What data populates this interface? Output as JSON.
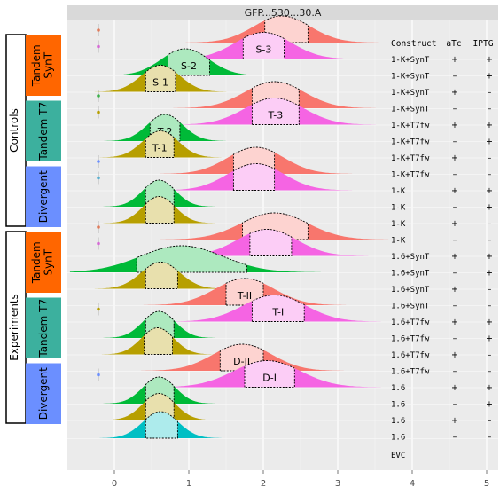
{
  "chart_data": {
    "type": "ridgeline",
    "title": "GFP...530...30.A",
    "x_ticks": [
      "0",
      "1",
      "2",
      "3",
      "4",
      "5"
    ],
    "xlim": [
      -0.6,
      5.3
    ],
    "grid": true,
    "table_headers": [
      "Construct",
      "aTc",
      "IPTG"
    ],
    "outer_groups": [
      {
        "label": "Controls",
        "row_start": 0,
        "row_end": 11
      },
      {
        "label": "Experiments",
        "row_start": 12,
        "row_end": 23
      }
    ],
    "subgroups": [
      {
        "label": "Tandem SynT",
        "color": "#ff6600",
        "row_start": 0,
        "row_end": 3
      },
      {
        "label": "Tandem T7",
        "color": "#3cb09e",
        "row_start": 4,
        "row_end": 7
      },
      {
        "label": "Divergent",
        "color": "#6b8fff",
        "row_start": 8,
        "row_end": 11
      },
      {
        "label": "Tandem SynT",
        "color": "#ff6600",
        "row_start": 12,
        "row_end": 15
      },
      {
        "label": "Tandem T7",
        "color": "#3cb09e",
        "row_start": 16,
        "row_end": 19
      },
      {
        "label": "Divergent",
        "color": "#6b8fff",
        "row_start": 20,
        "row_end": 23
      }
    ],
    "colors": {
      "both": "#f8766d",
      "iptg": "#f564e3",
      "atc": "#00ba38",
      "none": "#b79f00",
      "evc": "#00bfc4",
      "subgroup_border": "#000000"
    },
    "series": [
      {
        "construct": "1-K+SynT",
        "aTc": "+",
        "IPTG": "+",
        "cond": "both",
        "mean": 2.25,
        "sd": 0.38,
        "q1": 2.02,
        "q3": 2.6,
        "label": "",
        "dot": "both"
      },
      {
        "construct": "1-K+SynT",
        "aTc": "–",
        "IPTG": "+",
        "cond": "iptg",
        "mean": 2.0,
        "sd": 0.38,
        "q1": 1.73,
        "q3": 2.28,
        "label": "S-3",
        "dot": "iptg"
      },
      {
        "construct": "1-K+SynT",
        "aTc": "+",
        "IPTG": "–",
        "cond": "atc",
        "mean": 0.95,
        "sd": 0.32,
        "q1": 0.72,
        "q3": 1.28,
        "label": "S-2",
        "dot": ""
      },
      {
        "construct": "1-K+SynT",
        "aTc": "–",
        "IPTG": "–",
        "cond": "none",
        "mean": 0.62,
        "sd": 0.26,
        "q1": 0.42,
        "q3": 0.82,
        "label": "S-1",
        "dot": ""
      },
      {
        "construct": "1-K+T7fw",
        "aTc": "+",
        "IPTG": "+",
        "cond": "both",
        "mean": 2.15,
        "sd": 0.4,
        "q1": 1.85,
        "q3": 2.48,
        "label": "",
        "dot": "atc"
      },
      {
        "construct": "1-K+T7fw",
        "aTc": "–",
        "IPTG": "+",
        "cond": "iptg",
        "mean": 2.15,
        "sd": 0.4,
        "q1": 1.85,
        "q3": 2.48,
        "label": "T-3",
        "dot": "none"
      },
      {
        "construct": "1-K+T7fw",
        "aTc": "+",
        "IPTG": "–",
        "cond": "atc",
        "mean": 0.68,
        "sd": 0.24,
        "q1": 0.48,
        "q3": 0.88,
        "label": "T-2",
        "dot": ""
      },
      {
        "construct": "1-K+T7fw",
        "aTc": "–",
        "IPTG": "–",
        "cond": "none",
        "mean": 0.62,
        "sd": 0.24,
        "q1": 0.42,
        "q3": 0.8,
        "label": "T-1",
        "dot": ""
      },
      {
        "construct": "1-K",
        "aTc": "+",
        "IPTG": "+",
        "cond": "both",
        "mean": 1.9,
        "sd": 0.38,
        "q1": 1.6,
        "q3": 2.15,
        "label": "",
        "dot": "divergent"
      },
      {
        "construct": "1-K",
        "aTc": "–",
        "IPTG": "+",
        "cond": "iptg",
        "mean": 1.9,
        "sd": 0.38,
        "q1": 1.6,
        "q3": 2.15,
        "label": "",
        "dot": "divergent2"
      },
      {
        "construct": "1-K",
        "aTc": "+",
        "IPTG": "–",
        "cond": "atc",
        "mean": 0.6,
        "sd": 0.22,
        "q1": 0.42,
        "q3": 0.8,
        "label": "",
        "dot": ""
      },
      {
        "construct": "1-K",
        "aTc": "–",
        "IPTG": "–",
        "cond": "none",
        "mean": 0.6,
        "sd": 0.22,
        "q1": 0.42,
        "q3": 0.8,
        "label": "",
        "dot": ""
      },
      {
        "construct": "1.6+SynT",
        "aTc": "+",
        "IPTG": "+",
        "cond": "both",
        "mean": 2.15,
        "sd": 0.45,
        "q1": 1.72,
        "q3": 2.6,
        "label": "",
        "dot": "both"
      },
      {
        "construct": "1.6+SynT",
        "aTc": "–",
        "IPTG": "+",
        "cond": "iptg",
        "mean": 2.05,
        "sd": 0.4,
        "q1": 1.82,
        "q3": 2.38,
        "label": "",
        "dot": "iptg"
      },
      {
        "construct": "1.6+SynT",
        "aTc": "+",
        "IPTG": "–",
        "cond": "atc",
        "mean": 0.9,
        "sd": 0.55,
        "q1": 0.3,
        "q3": 1.78,
        "label": "",
        "dot": ""
      },
      {
        "construct": "1.6+SynT",
        "aTc": "–",
        "IPTG": "–",
        "cond": "none",
        "mean": 0.62,
        "sd": 0.26,
        "q1": 0.42,
        "q3": 0.85,
        "label": "",
        "dot": ""
      },
      {
        "construct": "1.6+T7fw",
        "aTc": "+",
        "IPTG": "+",
        "cond": "both",
        "mean": 1.75,
        "sd": 0.4,
        "q1": 1.5,
        "q3": 2.0,
        "label": "T-II",
        "dot": ""
      },
      {
        "construct": "1.6+T7fw",
        "aTc": "–",
        "IPTG": "+",
        "cond": "iptg",
        "mean": 2.15,
        "sd": 0.42,
        "q1": 1.85,
        "q3": 2.55,
        "label": "T-I",
        "dot": "none"
      },
      {
        "construct": "1.6+T7fw",
        "aTc": "+",
        "IPTG": "–",
        "cond": "atc",
        "mean": 0.6,
        "sd": 0.22,
        "q1": 0.42,
        "q3": 0.8,
        "label": "",
        "dot": ""
      },
      {
        "construct": "1.6+T7fw",
        "aTc": "–",
        "IPTG": "–",
        "cond": "none",
        "mean": 0.58,
        "sd": 0.22,
        "q1": 0.4,
        "q3": 0.78,
        "label": "",
        "dot": ""
      },
      {
        "construct": "1.6",
        "aTc": "+",
        "IPTG": "+",
        "cond": "both",
        "mean": 1.72,
        "sd": 0.4,
        "q1": 1.42,
        "q3": 2.0,
        "label": "D-II",
        "dot": ""
      },
      {
        "construct": "1.6",
        "aTc": "–",
        "IPTG": "+",
        "cond": "iptg",
        "mean": 2.05,
        "sd": 0.45,
        "q1": 1.75,
        "q3": 2.42,
        "label": "D-I",
        "dot": "divergent"
      },
      {
        "construct": "1.6",
        "aTc": "+",
        "IPTG": "–",
        "cond": "atc",
        "mean": 0.6,
        "sd": 0.22,
        "q1": 0.42,
        "q3": 0.8,
        "label": "",
        "dot": ""
      },
      {
        "construct": "1.6",
        "aTc": "–",
        "IPTG": "–",
        "cond": "none",
        "mean": 0.6,
        "sd": 0.22,
        "q1": 0.42,
        "q3": 0.8,
        "label": "",
        "dot": ""
      },
      {
        "construct": "EVC",
        "aTc": "",
        "IPTG": "",
        "cond": "evc",
        "mean": 0.62,
        "sd": 0.24,
        "q1": 0.42,
        "q3": 0.85,
        "label": "",
        "dot": ""
      }
    ]
  }
}
